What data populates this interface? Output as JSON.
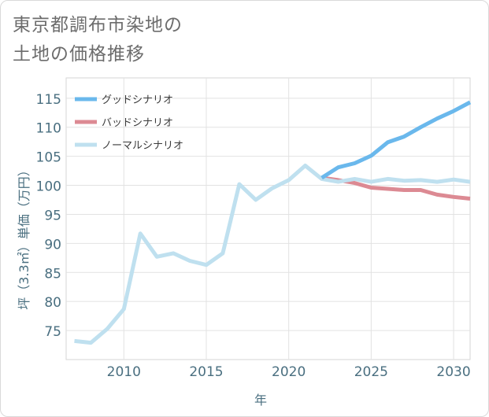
{
  "title_line1": "東京都調布市染地の",
  "title_line2": "土地の価格推移",
  "chart_data": {
    "type": "line",
    "xlabel": "年",
    "ylabel": "坪（3.3㎡）単価（万円）",
    "xlim": [
      2006.5,
      2031
    ],
    "ylim": [
      70,
      118.5
    ],
    "x_ticks": [
      2010,
      2015,
      2020,
      2025,
      2030
    ],
    "y_ticks": [
      75,
      80,
      85,
      90,
      95,
      100,
      105,
      110,
      115
    ],
    "grid": true,
    "legend_position": "top-left",
    "series": [
      {
        "name": "グッドシナリオ",
        "color": "#6ab8ec",
        "x": [
          2022,
          2023,
          2024,
          2025,
          2026,
          2027,
          2028,
          2029,
          2030,
          2031
        ],
        "y": [
          101.3,
          103.1,
          103.8,
          105.1,
          107.4,
          108.4,
          110.0,
          111.5,
          112.8,
          114.3
        ]
      },
      {
        "name": "バッドシナリオ",
        "color": "#dc8a93",
        "x": [
          2022,
          2023,
          2024,
          2025,
          2026,
          2027,
          2028,
          2029,
          2030,
          2031
        ],
        "y": [
          101.3,
          100.9,
          100.4,
          99.6,
          99.4,
          99.2,
          99.2,
          98.4,
          98.0,
          97.7
        ]
      },
      {
        "name": "ノーマルシナリオ",
        "color": "#bfe0ef",
        "x": [
          2007,
          2008,
          2009,
          2010,
          2011,
          2012,
          2013,
          2014,
          2015,
          2016,
          2017,
          2018,
          2019,
          2020,
          2021,
          2022,
          2023,
          2024,
          2025,
          2026,
          2027,
          2028,
          2029,
          2030,
          2031
        ],
        "y": [
          73.2,
          72.9,
          75.3,
          78.7,
          91.7,
          87.7,
          88.3,
          87.0,
          86.3,
          88.3,
          100.2,
          97.5,
          99.5,
          100.9,
          103.4,
          101.1,
          100.6,
          101.1,
          100.6,
          101.1,
          100.8,
          100.9,
          100.6,
          101.0,
          100.6
        ]
      }
    ]
  }
}
